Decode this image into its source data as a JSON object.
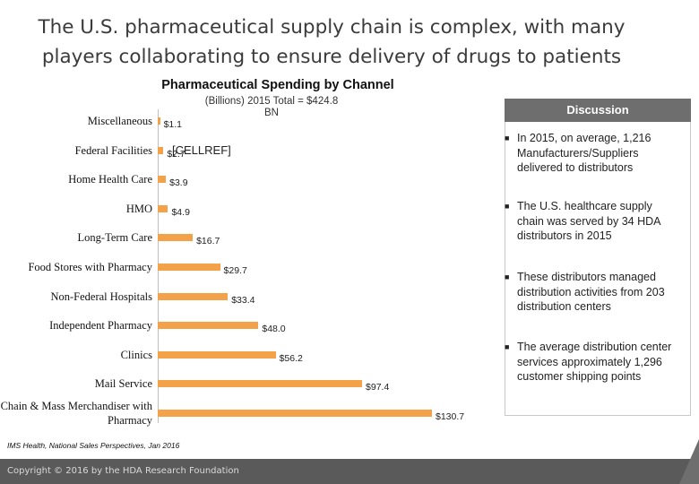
{
  "slide": {
    "title": "The U.S. pharmaceutical supply chain is complex, with many players collaborating to ensure delivery of drugs to patients"
  },
  "chart_data": {
    "type": "bar",
    "orientation": "horizontal",
    "title": "Pharmaceutical Spending by Channel",
    "subtitle": "(Billions) 2015 Total = $424.8 BN",
    "categories": [
      "Miscellaneous",
      "Federal Facilities",
      "Home Health Care",
      "HMO",
      "Long-Term Care",
      "Food Stores with Pharmacy",
      "Non-Federal Hospitals",
      "Independent Pharmacy",
      "Clinics",
      "Mail Service",
      "Chain & Mass Merchandiser with Pharmacy"
    ],
    "values": [
      1.1,
      2.7,
      3.9,
      4.9,
      16.7,
      29.7,
      33.4,
      48.0,
      56.2,
      97.4,
      130.7
    ],
    "value_labels": [
      "$1.1",
      "$2.7",
      "$3.9",
      "$4.9",
      "$16.7",
      "$29.7",
      "$33.4",
      "$48.0",
      "$56.2",
      "$97.4",
      "$130.7"
    ],
    "overlay_label": "[CELLREF]",
    "bar_color": "#f4a24a",
    "grid": false
  },
  "discussion": {
    "header": "Discussion",
    "bullets": [
      "In 2015, on average, 1,216 Manufacturers/Suppliers delivered to distributors",
      "The U.S. healthcare supply chain was served by 34 HDA distributors in 2015",
      "These distributors managed distribution activities from 203 distribution centers",
      "The average distribution center services approximately 1,296 customer shipping points"
    ]
  },
  "source": "IMS Health, National Sales Perspectives, Jan 2016",
  "footer": {
    "copyright": "Copyright © 2016 by the HDA Research Foundation"
  }
}
